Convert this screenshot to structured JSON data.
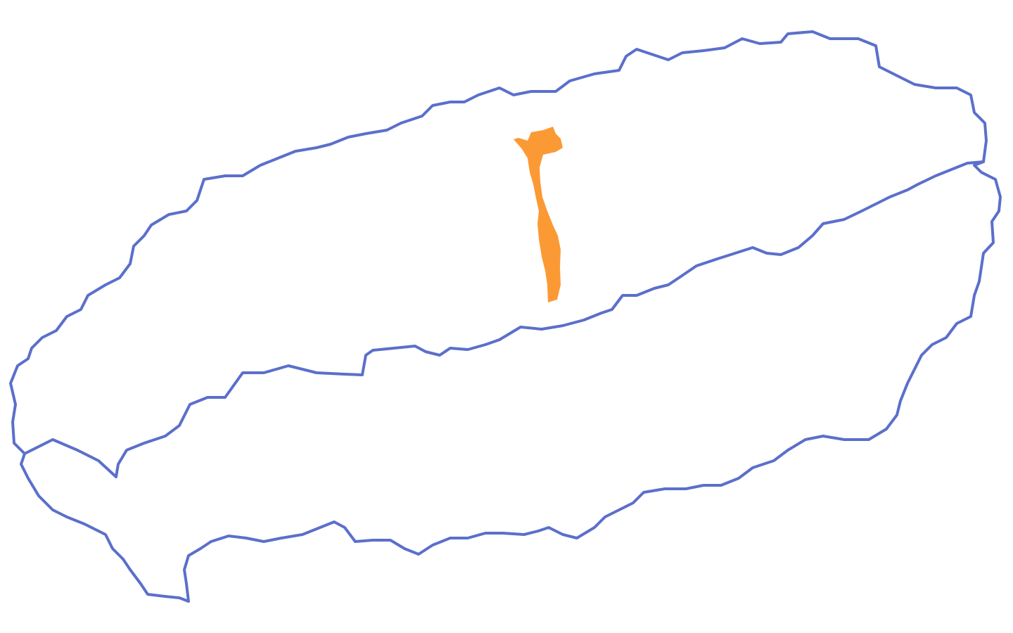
{
  "map": {
    "boundary_color": "#5b6fcb",
    "highlight_color": "#fb9a35",
    "background_color": "#ffffff",
    "regions": [
      {
        "id": "north-region",
        "highlighted": false
      },
      {
        "id": "south-region",
        "highlighted": false
      },
      {
        "id": "selected-district",
        "highlighted": true
      }
    ]
  }
}
